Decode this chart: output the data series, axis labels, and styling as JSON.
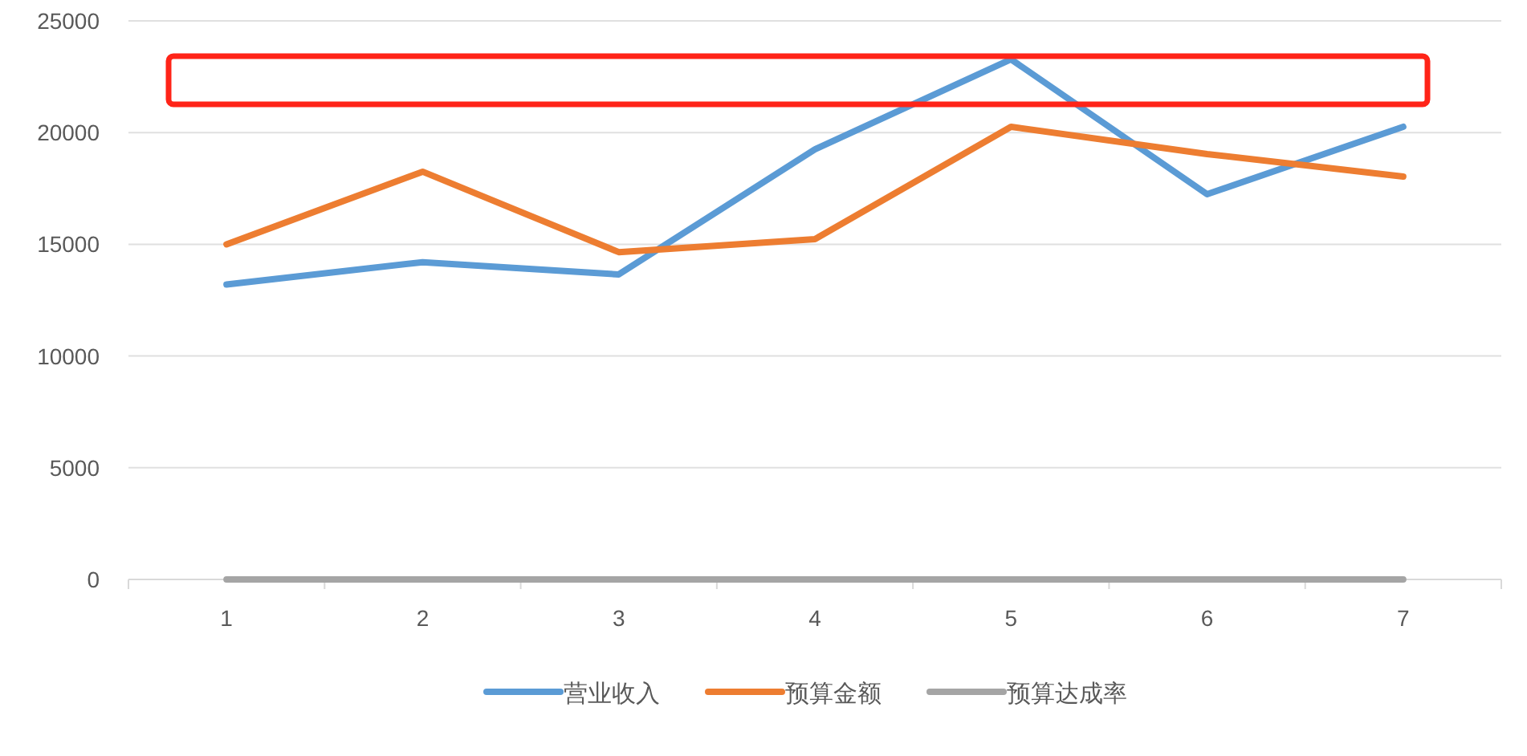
{
  "chart_data": {
    "type": "line",
    "categories": [
      "1",
      "2",
      "3",
      "4",
      "5",
      "6",
      "7"
    ],
    "series": [
      {
        "name": "营业收入",
        "color": "#5b9bd5",
        "values": [
          13200,
          14200,
          13650,
          19250,
          23280,
          17240,
          20260
        ]
      },
      {
        "name": "预算金额",
        "color": "#ed7d31",
        "values": [
          15000,
          18250,
          14650,
          15230,
          20260,
          19040,
          18030
        ]
      },
      {
        "name": "预算达成率",
        "color": "#a5a5a5",
        "values": [
          0,
          0,
          0,
          0,
          0,
          0,
          0
        ]
      }
    ],
    "ylim": [
      0,
      25000
    ],
    "yticks": [
      0,
      5000,
      10000,
      15000,
      20000,
      25000
    ],
    "grid": "y",
    "legend": "bottom",
    "marker": "none",
    "line_style": "solid"
  }
}
